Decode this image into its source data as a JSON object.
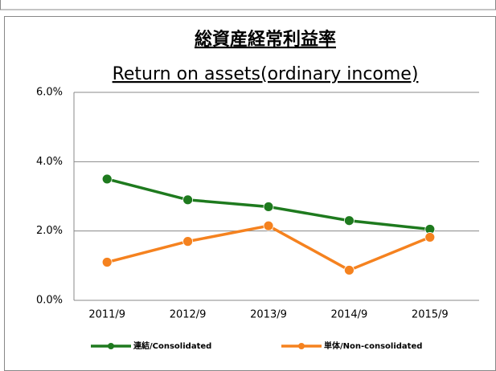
{
  "chart_data": {
    "type": "line",
    "title": "総資産経常利益率",
    "subtitle": "Return on assets(ordinary income)",
    "categories": [
      "2011/9",
      "2012/9",
      "2013/9",
      "2014/9",
      "2015/9"
    ],
    "series": [
      {
        "name": "連結/Consolidated",
        "color": "#1e7a1e",
        "values": [
          3.5,
          2.9,
          2.7,
          2.3,
          2.05
        ]
      },
      {
        "name": "単体/Non-consolidated",
        "color": "#f5821f",
        "values": [
          1.1,
          1.7,
          2.15,
          0.87,
          1.82
        ]
      }
    ],
    "ylim": [
      0,
      6
    ],
    "yticks": [
      {
        "value": 0,
        "label": "0.0%"
      },
      {
        "value": 2,
        "label": "2.0%"
      },
      {
        "value": 4,
        "label": "4.0%"
      },
      {
        "value": 6,
        "label": "6.0%"
      }
    ],
    "grid": true,
    "legend": "bottom"
  }
}
